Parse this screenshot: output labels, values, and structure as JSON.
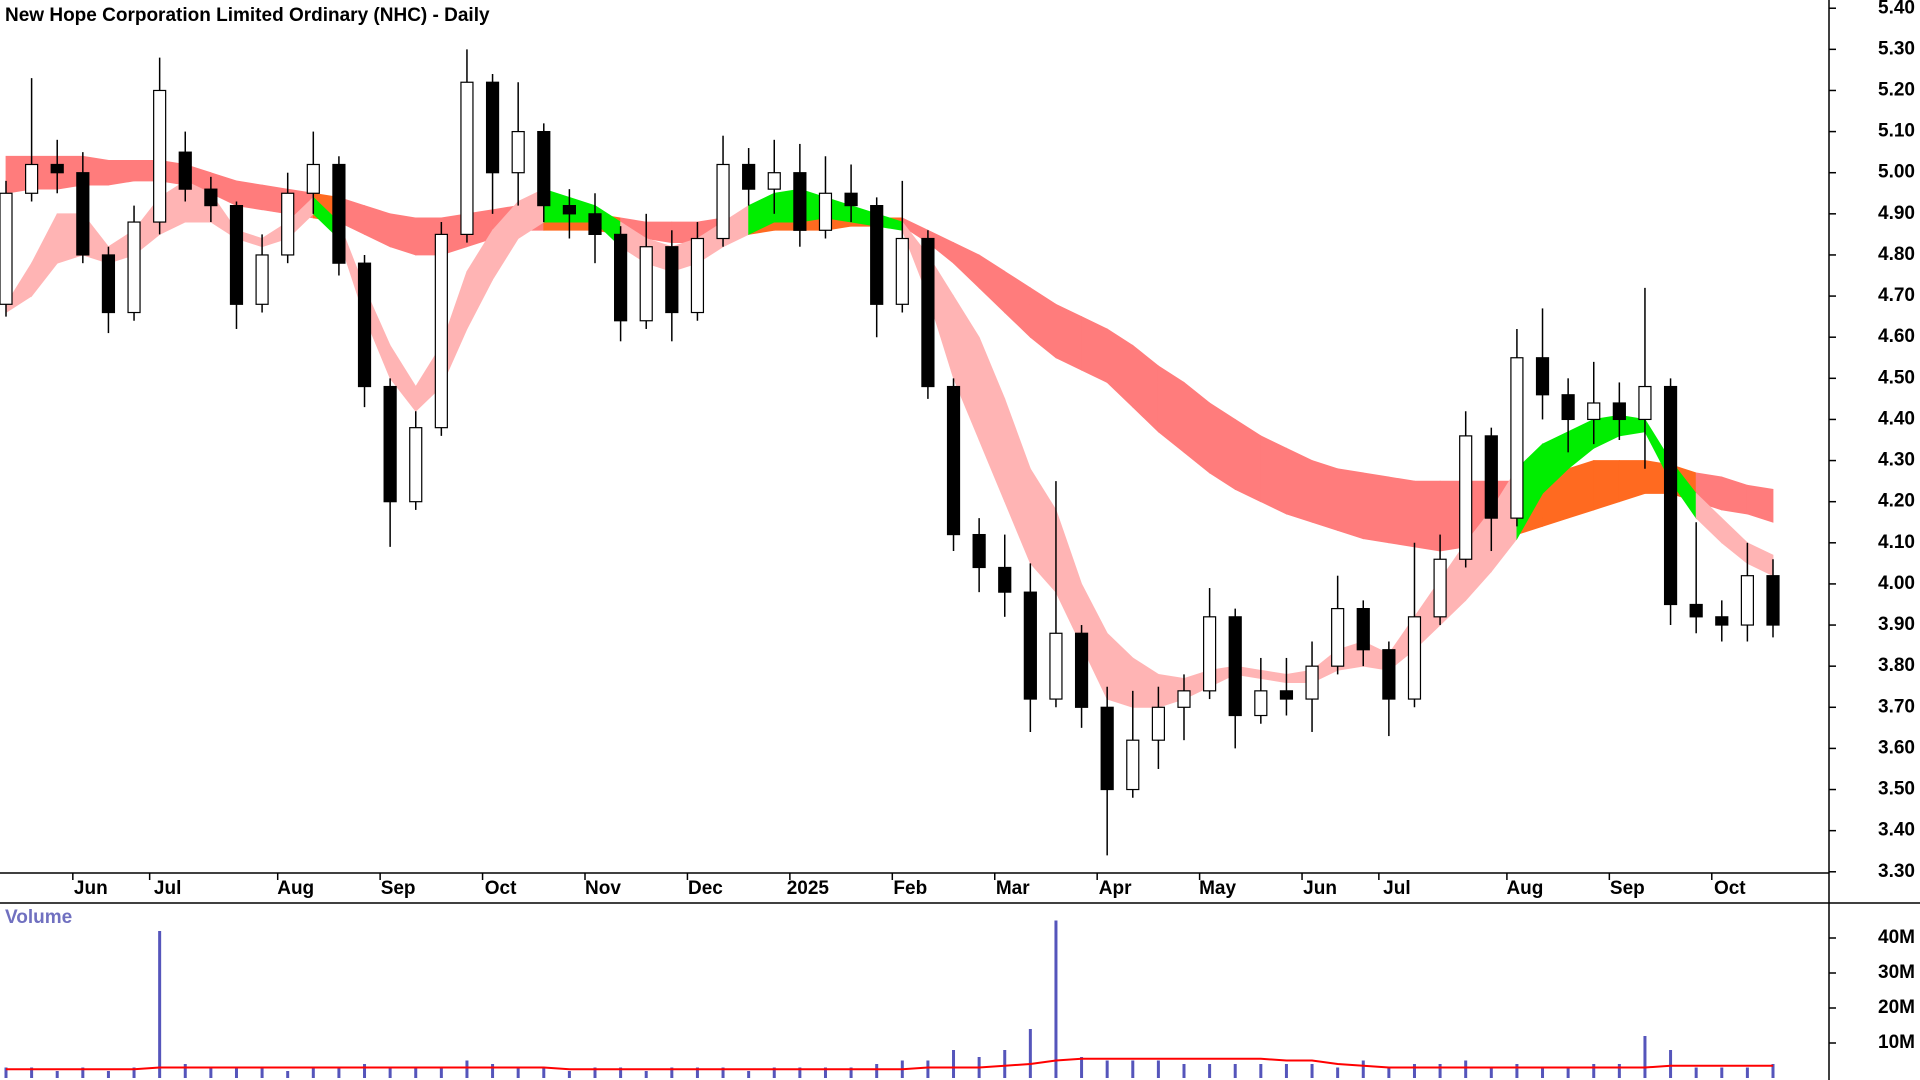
{
  "chart_data": {
    "type": "candlestick",
    "title": "New Hope Corporation Limited Ordinary (NHC) - Daily",
    "categories": [
      null,
      null,
      null,
      "Jun",
      null,
      null,
      "Jul",
      null,
      null,
      null,
      null,
      "Aug",
      null,
      null,
      null,
      "Sep",
      null,
      null,
      null,
      "Oct",
      null,
      null,
      null,
      "Nov",
      null,
      null,
      null,
      "Dec",
      null,
      null,
      null,
      "2025",
      null,
      null,
      null,
      "Feb",
      null,
      null,
      null,
      "Mar",
      null,
      null,
      null,
      "Apr",
      null,
      null,
      null,
      "May",
      null,
      null,
      null,
      "Jun",
      null,
      null,
      "Jul",
      null,
      null,
      null,
      null,
      "Aug",
      null,
      null,
      null,
      "Sep",
      null,
      null,
      null,
      "Oct",
      null,
      null
    ],
    "open": [
      4.68,
      4.95,
      5.02,
      5.0,
      4.8,
      4.66,
      4.88,
      5.05,
      4.96,
      4.92,
      4.68,
      4.8,
      4.95,
      5.02,
      4.78,
      4.48,
      4.2,
      4.38,
      4.85,
      5.22,
      5.0,
      5.1,
      4.92,
      4.9,
      4.85,
      4.64,
      4.82,
      4.66,
      4.84,
      5.02,
      4.96,
      5.0,
      4.86,
      4.95,
      4.92,
      4.68,
      4.84,
      4.48,
      4.12,
      4.04,
      3.98,
      3.72,
      3.88,
      3.7,
      3.5,
      3.62,
      3.7,
      3.74,
      3.92,
      3.68,
      3.74,
      3.72,
      3.8,
      3.94,
      3.84,
      3.72,
      3.92,
      4.06,
      4.36,
      4.16,
      4.55,
      4.46,
      4.4,
      4.44,
      4.4,
      4.48,
      3.95,
      3.92,
      3.9,
      4.02
    ],
    "high": [
      4.98,
      5.23,
      5.08,
      5.05,
      4.82,
      4.92,
      5.28,
      5.1,
      4.99,
      4.93,
      4.85,
      5.0,
      5.1,
      5.04,
      4.8,
      4.5,
      4.42,
      4.88,
      5.3,
      5.24,
      5.22,
      5.12,
      4.96,
      4.95,
      4.87,
      4.9,
      4.86,
      4.88,
      5.09,
      5.06,
      5.08,
      5.07,
      5.04,
      5.02,
      4.94,
      4.98,
      4.86,
      4.5,
      4.16,
      4.12,
      4.05,
      4.25,
      3.9,
      3.75,
      3.74,
      3.75,
      3.78,
      3.99,
      3.94,
      3.82,
      3.82,
      3.86,
      4.02,
      3.96,
      3.86,
      4.1,
      4.12,
      4.42,
      4.38,
      4.62,
      4.67,
      4.5,
      4.54,
      4.49,
      4.72,
      4.5,
      4.15,
      3.96,
      4.1,
      4.06
    ],
    "low": [
      4.65,
      4.93,
      4.95,
      4.78,
      4.61,
      4.64,
      4.85,
      4.93,
      4.88,
      4.62,
      4.66,
      4.78,
      4.9,
      4.75,
      4.43,
      4.09,
      4.18,
      4.36,
      4.83,
      4.9,
      4.92,
      4.88,
      4.84,
      4.78,
      4.59,
      4.62,
      4.59,
      4.64,
      4.82,
      4.92,
      4.9,
      4.82,
      4.84,
      4.88,
      4.6,
      4.66,
      4.45,
      4.08,
      3.98,
      3.92,
      3.64,
      3.7,
      3.65,
      3.34,
      3.48,
      3.55,
      3.62,
      3.72,
      3.6,
      3.66,
      3.68,
      3.64,
      3.78,
      3.8,
      3.63,
      3.7,
      3.9,
      4.04,
      4.08,
      4.14,
      4.4,
      4.32,
      4.34,
      4.35,
      4.28,
      3.9,
      3.88,
      3.86,
      3.86,
      3.87
    ],
    "close": [
      4.95,
      5.02,
      5.0,
      4.8,
      4.66,
      4.88,
      5.2,
      4.96,
      4.92,
      4.68,
      4.8,
      4.95,
      5.02,
      4.78,
      4.48,
      4.2,
      4.38,
      4.85,
      5.22,
      5.0,
      5.1,
      4.92,
      4.9,
      4.85,
      4.64,
      4.82,
      4.66,
      4.84,
      5.02,
      4.96,
      5.0,
      4.86,
      4.95,
      4.92,
      4.68,
      4.84,
      4.48,
      4.12,
      4.04,
      3.98,
      3.72,
      3.88,
      3.7,
      3.5,
      3.62,
      3.7,
      3.74,
      3.92,
      3.68,
      3.74,
      3.72,
      3.8,
      3.94,
      3.84,
      3.72,
      3.92,
      4.06,
      4.36,
      4.16,
      4.55,
      4.46,
      4.4,
      4.44,
      4.4,
      4.48,
      3.95,
      3.92,
      3.9,
      4.02,
      3.9
    ],
    "up_color": "#ffffff",
    "down_color": "#000000",
    "ylim": [
      3.28,
      5.42
    ],
    "yticks": [
      {
        "value": 3.3,
        "label": "3.30"
      },
      {
        "value": 3.4,
        "label": "3.40"
      },
      {
        "value": 3.5,
        "label": "3.50"
      },
      {
        "value": 3.6,
        "label": "3.60"
      },
      {
        "value": 3.7,
        "label": "3.70"
      },
      {
        "value": 3.8,
        "label": "3.80"
      },
      {
        "value": 3.9,
        "label": "3.90"
      },
      {
        "value": 4.0,
        "label": "4.00"
      },
      {
        "value": 4.1,
        "label": "4.10"
      },
      {
        "value": 4.2,
        "label": "4.20"
      },
      {
        "value": 4.3,
        "label": "4.30"
      },
      {
        "value": 4.4,
        "label": "4.40"
      },
      {
        "value": 4.5,
        "label": "4.50"
      },
      {
        "value": 4.6,
        "label": "4.60"
      },
      {
        "value": 4.7,
        "label": "4.70"
      },
      {
        "value": 4.8,
        "label": "4.80"
      },
      {
        "value": 4.9,
        "label": "4.90"
      },
      {
        "value": 5.0,
        "label": "5.00"
      },
      {
        "value": 5.1,
        "label": "5.10"
      },
      {
        "value": 5.2,
        "label": "5.20"
      },
      {
        "value": 5.3,
        "label": "5.30"
      },
      {
        "value": 5.4,
        "label": "5.40"
      }
    ],
    "ribbons": {
      "long": {
        "upper": [
          5.04,
          5.04,
          5.04,
          5.04,
          5.03,
          5.03,
          5.03,
          5.02,
          5.0,
          4.98,
          4.97,
          4.96,
          4.95,
          4.94,
          4.92,
          4.9,
          4.89,
          4.89,
          4.9,
          4.91,
          4.92,
          4.92,
          4.91,
          4.9,
          4.89,
          4.88,
          4.88,
          4.88,
          4.89,
          4.89,
          4.9,
          4.9,
          4.9,
          4.9,
          4.89,
          4.89,
          4.86,
          4.83,
          4.8,
          4.76,
          4.72,
          4.68,
          4.65,
          4.62,
          4.58,
          4.53,
          4.49,
          4.44,
          4.4,
          4.36,
          4.33,
          4.3,
          4.28,
          4.27,
          4.26,
          4.25,
          4.25,
          4.25,
          4.25,
          4.25,
          4.26,
          4.28,
          4.3,
          4.3,
          4.3,
          4.29,
          4.27,
          4.26,
          4.24,
          4.23
        ],
        "lower": [
          4.95,
          4.96,
          4.96,
          4.97,
          4.97,
          4.98,
          4.98,
          4.97,
          4.95,
          4.92,
          4.91,
          4.9,
          4.89,
          4.88,
          4.85,
          4.82,
          4.8,
          4.8,
          4.82,
          4.84,
          4.86,
          4.86,
          4.86,
          4.86,
          4.85,
          4.84,
          4.83,
          4.83,
          4.84,
          4.85,
          4.86,
          4.86,
          4.86,
          4.87,
          4.87,
          4.87,
          4.83,
          4.78,
          4.72,
          4.66,
          4.6,
          4.55,
          4.52,
          4.49,
          4.43,
          4.37,
          4.32,
          4.27,
          4.23,
          4.2,
          4.17,
          4.15,
          4.13,
          4.11,
          4.1,
          4.09,
          4.08,
          4.09,
          4.1,
          4.12,
          4.14,
          4.16,
          4.18,
          4.2,
          4.22,
          4.22,
          4.2,
          4.18,
          4.17,
          4.15
        ],
        "color_above": "#ff6a20",
        "color_below": "#ff7c7c"
      },
      "short": {
        "upper": [
          4.68,
          4.78,
          4.9,
          4.9,
          4.82,
          4.86,
          4.94,
          4.98,
          4.95,
          4.86,
          4.84,
          4.88,
          4.94,
          4.88,
          4.72,
          4.58,
          4.48,
          4.58,
          4.76,
          4.86,
          4.93,
          4.96,
          4.94,
          4.92,
          4.88,
          4.84,
          4.82,
          4.84,
          4.88,
          4.92,
          4.95,
          4.96,
          4.94,
          4.92,
          4.9,
          4.88,
          4.8,
          4.7,
          4.6,
          4.45,
          4.28,
          4.18,
          4.0,
          3.88,
          3.82,
          3.78,
          3.77,
          3.79,
          3.8,
          3.79,
          3.78,
          3.79,
          3.84,
          3.86,
          3.83,
          3.92,
          4.01,
          4.1,
          4.18,
          4.28,
          4.34,
          4.37,
          4.4,
          4.41,
          4.4,
          4.3,
          4.22,
          4.16,
          4.1,
          4.07
        ],
        "lower": [
          4.66,
          4.7,
          4.78,
          4.8,
          4.78,
          4.8,
          4.85,
          4.88,
          4.88,
          4.84,
          4.82,
          4.84,
          4.9,
          4.84,
          4.65,
          4.5,
          4.42,
          4.48,
          4.62,
          4.74,
          4.84,
          4.88,
          4.88,
          4.88,
          4.82,
          4.78,
          4.76,
          4.78,
          4.82,
          4.85,
          4.88,
          4.88,
          4.89,
          4.88,
          4.87,
          4.86,
          4.7,
          4.5,
          4.35,
          4.2,
          4.05,
          3.98,
          3.85,
          3.72,
          3.7,
          3.7,
          3.72,
          3.75,
          3.78,
          3.77,
          3.76,
          3.76,
          3.79,
          3.8,
          3.79,
          3.84,
          3.9,
          3.96,
          4.03,
          4.11,
          4.22,
          4.28,
          4.33,
          4.36,
          4.37,
          4.25,
          4.16,
          4.1,
          4.05,
          4.02
        ],
        "color_above": "#00ee00",
        "color_below": "#ffb4b4"
      }
    },
    "volume": {
      "label": "Volume",
      "values": [
        3,
        3,
        2,
        3,
        2,
        3,
        42,
        4,
        3,
        3,
        3,
        2,
        3,
        3,
        4,
        3,
        3,
        3,
        5,
        4,
        3,
        3,
        2,
        3,
        3,
        2,
        3,
        3,
        3,
        2,
        3,
        3,
        3,
        3,
        4,
        5,
        5,
        8,
        6,
        8,
        14,
        45,
        6,
        5,
        5,
        5,
        4,
        4,
        4,
        4,
        4,
        4,
        3,
        5,
        3,
        4,
        4,
        5,
        3,
        4,
        3,
        3,
        4,
        4,
        12,
        8,
        3,
        3,
        3,
        4
      ],
      "average": [
        2.5,
        2.5,
        2.5,
        2.5,
        2.5,
        2.5,
        3,
        3,
        3,
        3,
        3,
        3,
        3,
        3,
        3,
        3,
        3,
        3,
        3,
        3,
        3,
        3,
        2.5,
        2.5,
        2.5,
        2.5,
        2.5,
        2.5,
        2.5,
        2.5,
        2.5,
        2.5,
        2.5,
        2.5,
        2.5,
        2.5,
        3,
        3,
        3,
        3.5,
        4,
        5,
        5.5,
        5.5,
        5.5,
        5.5,
        5.5,
        5.5,
        5.5,
        5.5,
        5,
        5,
        4,
        3.5,
        3,
        3,
        3,
        3,
        3,
        3,
        3,
        3,
        3,
        3,
        3,
        3.5,
        3.5,
        3.5,
        3.5,
        3.5
      ],
      "color": "#5555bb",
      "average_color": "#ff0000",
      "ylim": [
        0,
        50
      ],
      "yticks": [
        {
          "value": 10,
          "label": "10M"
        },
        {
          "value": 20,
          "label": "20M"
        },
        {
          "value": 30,
          "label": "30M"
        },
        {
          "value": 40,
          "label": "40M"
        }
      ]
    }
  }
}
